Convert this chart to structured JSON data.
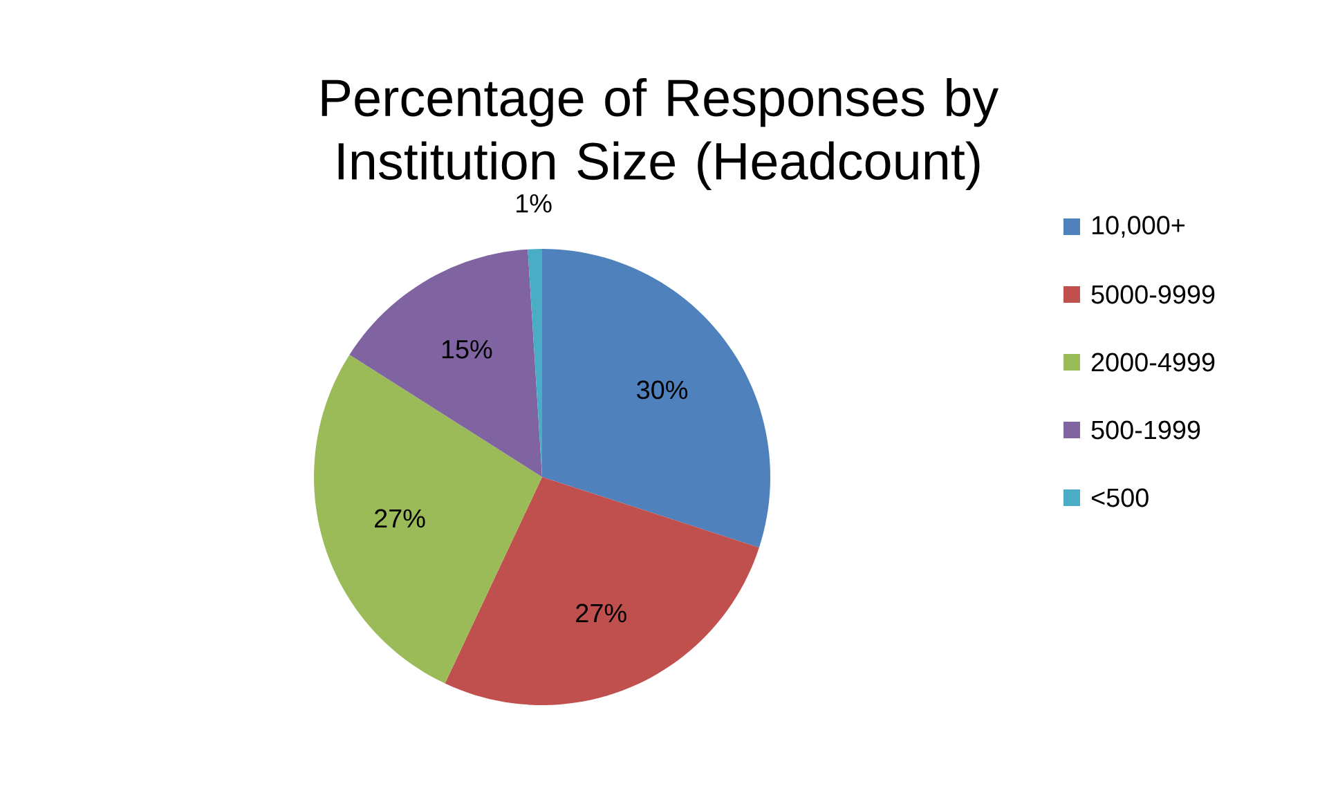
{
  "chart_data": {
    "type": "pie",
    "title": "Percentage of Responses by Institution Size (Headcount)",
    "categories": [
      "10,000+",
      "5000-9999",
      "2000-4999",
      "500-1999",
      "<500"
    ],
    "values": [
      30,
      27,
      27,
      15,
      1
    ],
    "colors": [
      "#4f81bd",
      "#c0504d",
      "#9bbb59",
      "#8064a2",
      "#4bacc6"
    ],
    "value_labels": [
      "30%",
      "27%",
      "27%",
      "15%",
      "1%"
    ],
    "legend": "right"
  }
}
